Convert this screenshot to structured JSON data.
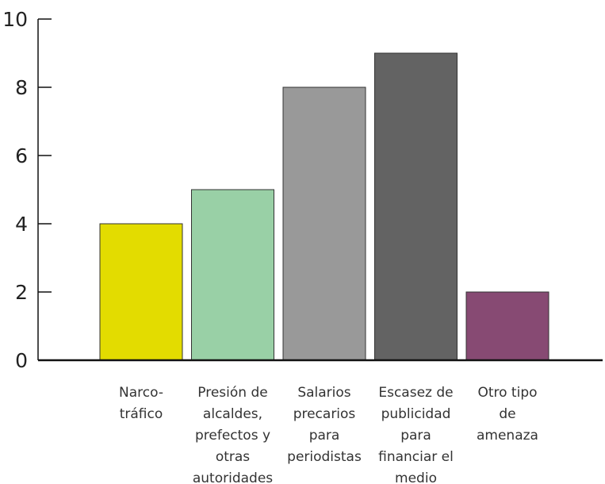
{
  "chart_data": {
    "type": "bar",
    "title": "",
    "xlabel": "",
    "ylabel": "",
    "ylim": [
      0,
      10
    ],
    "yticks": [
      0,
      2,
      4,
      6,
      8,
      10
    ],
    "grid": false,
    "legend": "none",
    "categories": [
      "Narco-tráfico",
      "Presión de alcaldes, prefectos y otras autoridades",
      "Salarios precarios para periodistas",
      "Escasez de publicidad para financiar el medio",
      "Otro tipo de amenaza"
    ],
    "category_label_lines": [
      [
        "Narco-",
        "tráfico"
      ],
      [
        "Presión de",
        "alcaldes,",
        "prefectos y",
        "otras",
        "autoridades"
      ],
      [
        "Salarios",
        "precarios",
        "para",
        "periodistas"
      ],
      [
        "Escasez de",
        "publicidad",
        "para",
        "financiar el",
        "medio"
      ],
      [
        "Otro tipo",
        "de",
        "amenaza"
      ]
    ],
    "values": [
      4,
      5,
      8,
      9,
      2
    ],
    "colors": [
      "#e3dc00",
      "#99d0a6",
      "#999999",
      "#636363",
      "#874a73"
    ],
    "bar_outline_color": "#333333",
    "axis_color": "#111111"
  }
}
